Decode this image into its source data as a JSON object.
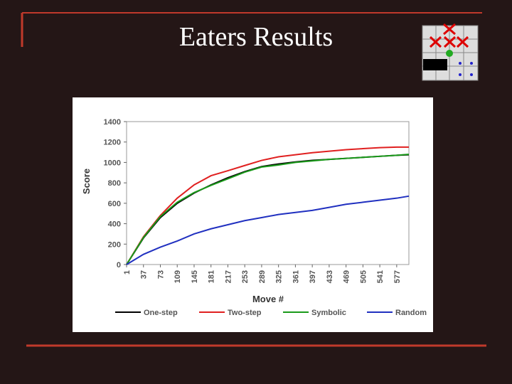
{
  "slide": {
    "title": "Eaters Results"
  },
  "chart_data": {
    "type": "line",
    "x_label": "Move #",
    "y_label": "Score",
    "x": [
      1,
      37,
      73,
      109,
      145,
      181,
      217,
      253,
      289,
      325,
      361,
      397,
      433,
      469,
      505,
      541,
      577,
      603
    ],
    "xlim": [
      1,
      603
    ],
    "xticks": [
      1,
      37,
      73,
      109,
      145,
      181,
      217,
      253,
      289,
      325,
      361,
      397,
      433,
      469,
      505,
      541,
      577
    ],
    "ylim": [
      0,
      1400
    ],
    "yticks": [
      0,
      200,
      400,
      600,
      800,
      1000,
      1200,
      1400
    ],
    "grid": false,
    "legend": "bottom",
    "series": [
      {
        "name": "One-step",
        "color": "#000000",
        "values": [
          0,
          260,
          460,
          600,
          700,
          780,
          850,
          910,
          960,
          985,
          1005,
          1020,
          1030,
          1040,
          1050,
          1060,
          1070,
          1075
        ]
      },
      {
        "name": "Two-step",
        "color": "#e02020",
        "values": [
          0,
          272,
          480,
          650,
          780,
          870,
          919,
          970,
          1020,
          1055,
          1075,
          1095,
          1110,
          1125,
          1135,
          1145,
          1150,
          1150
        ]
      },
      {
        "name": "Symbolic",
        "color": "#1a9a1a",
        "values": [
          0,
          265,
          470,
          610,
          705,
          775,
          840,
          905,
          955,
          975,
          1000,
          1015,
          1030,
          1040,
          1050,
          1060,
          1070,
          1080
        ]
      },
      {
        "name": "Random",
        "color": "#2030c0",
        "values": [
          0,
          100,
          170,
          230,
          300,
          350,
          390,
          430,
          460,
          490,
          510,
          530,
          560,
          590,
          610,
          630,
          650,
          670
        ]
      }
    ]
  }
}
